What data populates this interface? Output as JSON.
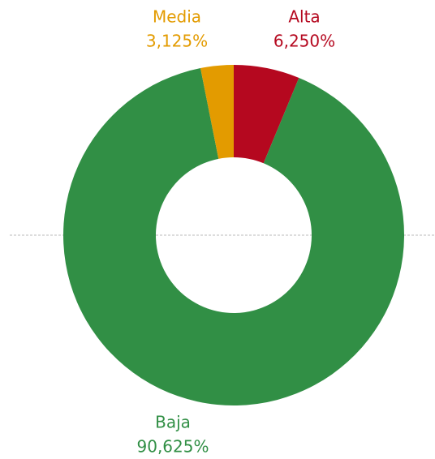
{
  "chart_data": {
    "type": "donut",
    "categories": [
      "Alta",
      "Baja",
      "Media"
    ],
    "values": [
      6.25,
      90.625,
      3.125
    ],
    "value_labels": [
      "6,250%",
      "90,625%",
      "3,125%"
    ],
    "colors": [
      "#b5081f",
      "#318f45",
      "#e39b00"
    ]
  }
}
